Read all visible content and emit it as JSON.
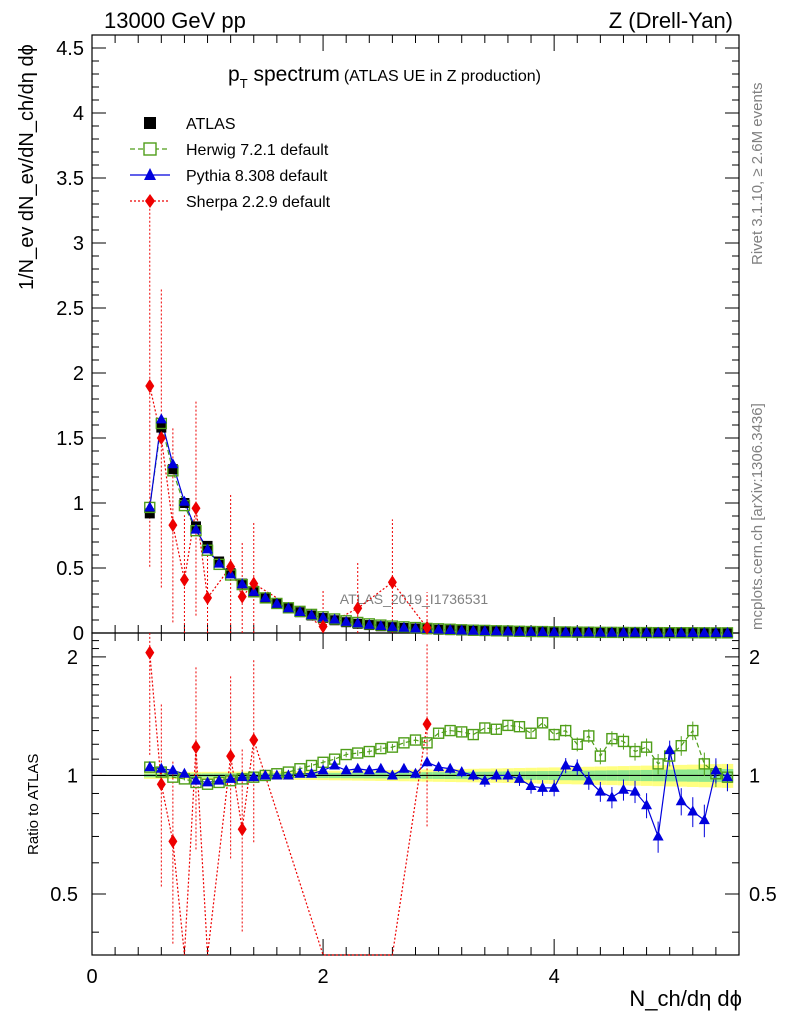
{
  "header": {
    "left": "13000 GeV pp",
    "right": "Z (Drell-Yan)"
  },
  "title": {
    "main": "p",
    "sub": "T",
    "main2": " spectrum",
    "small": "(ATLAS UE in Z production)"
  },
  "watermark": "ATLAS_2019_I1736531",
  "side": {
    "rivet": "Rivet 3.1.10, ≥ 2.6M events",
    "mcplots": "mcplots.cern.ch [arXiv:1306.3436]"
  },
  "axes": {
    "ylabel_top": "1/N_ev dN_ev/dN_ch/dη dϕ",
    "ylabel_bottom": "Ratio to ATLAS",
    "xlabel": "N_ch/dη dϕ"
  },
  "legend": [
    {
      "label": "ATLAS",
      "color": "#000000",
      "marker": "square"
    },
    {
      "label": "Herwig 7.2.1 default",
      "color": "#4f9e19",
      "marker": "open-square",
      "dash": "dashed"
    },
    {
      "label": "Pythia 8.308 default",
      "color": "#0000dd",
      "marker": "triangle",
      "dash": "solid"
    },
    {
      "label": "Sherpa 2.2.9 default",
      "color": "#ee0000",
      "marker": "diamond",
      "dash": "dotted"
    }
  ],
  "chart_data": {
    "type": "scatter",
    "xlim": [
      0,
      5.6
    ],
    "top_ylim": [
      0,
      4.6
    ],
    "ratio_ylim": [
      0.35,
      2.3
    ],
    "top_yticks": [
      "0",
      "0.5",
      "1",
      "1.5",
      "2",
      "2.5",
      "3",
      "3.5",
      "4",
      "4.5"
    ],
    "ratio_yticks": [
      "0.5",
      "1",
      "2"
    ],
    "xticks": [
      "0",
      "2",
      "4"
    ],
    "x": [
      0.5,
      0.6,
      0.7,
      0.8,
      0.9,
      1.0,
      1.1,
      1.2,
      1.3,
      1.4,
      1.5,
      1.6,
      1.7,
      1.8,
      1.9,
      2.0,
      2.1,
      2.2,
      2.3,
      2.4,
      2.5,
      2.6,
      2.7,
      2.8,
      2.9,
      3.0,
      3.1,
      3.2,
      3.3,
      3.4,
      3.5,
      3.6,
      3.7,
      3.8,
      3.9,
      4.0,
      4.1,
      4.2,
      4.3,
      4.4,
      4.5,
      4.6,
      4.7,
      4.8,
      4.9,
      5.0,
      5.1,
      5.2,
      5.3,
      5.4,
      5.5
    ],
    "atlas": [
      0.92,
      1.58,
      1.26,
      1.0,
      0.82,
      0.67,
      0.55,
      0.46,
      0.38,
      0.32,
      0.27,
      0.225,
      0.19,
      0.16,
      0.135,
      0.115,
      0.098,
      0.083,
      0.071,
      0.061,
      0.052,
      0.045,
      0.039,
      0.034,
      0.029,
      0.025,
      0.022,
      0.019,
      0.017,
      0.015,
      0.013,
      0.0115,
      0.01,
      0.009,
      0.008,
      0.007,
      0.0062,
      0.0055,
      0.0049,
      0.0043,
      0.0038,
      0.0034,
      0.003,
      0.0027,
      0.0024,
      0.0021,
      0.0019,
      0.0017,
      0.0015,
      0.0013,
      0.0012
    ],
    "series": [
      {
        "name": "Herwig 7.2.1 default",
        "ratio": [
          1.05,
          1.02,
          0.99,
          0.98,
          0.96,
          0.95,
          0.96,
          0.97,
          0.98,
          0.99,
          1.0,
          1.01,
          1.02,
          1.04,
          1.06,
          1.08,
          1.1,
          1.13,
          1.14,
          1.15,
          1.17,
          1.18,
          1.21,
          1.23,
          1.21,
          1.28,
          1.3,
          1.29,
          1.27,
          1.32,
          1.31,
          1.34,
          1.33,
          1.28,
          1.36,
          1.27,
          1.3,
          1.2,
          1.26,
          1.12,
          1.24,
          1.22,
          1.15,
          1.18,
          1.07,
          1.12,
          1.19,
          1.3,
          1.07,
          1.01,
          0.99
        ]
      },
      {
        "name": "Pythia 8.308 default",
        "ratio": [
          1.05,
          1.04,
          1.03,
          1.01,
          0.97,
          0.96,
          0.97,
          0.98,
          0.99,
          0.99,
          1.0,
          1.0,
          1.0,
          1.01,
          1.01,
          1.03,
          1.06,
          1.03,
          1.04,
          1.03,
          1.04,
          1.0,
          1.04,
          1.01,
          1.08,
          1.05,
          1.04,
          1.02,
          1.0,
          0.97,
          1.0,
          1.0,
          0.98,
          0.94,
          0.93,
          0.93,
          1.06,
          1.05,
          0.97,
          0.91,
          0.88,
          0.92,
          0.91,
          0.84,
          0.7,
          1.16,
          0.86,
          0.81,
          0.77,
          1.03,
          0.99
        ]
      },
      {
        "name": "Sherpa 2.2.9 default",
        "x": [
          0.5,
          0.6,
          0.7,
          0.8,
          0.9,
          1.0,
          1.2,
          1.3,
          1.4,
          2.0,
          2.3,
          2.6,
          2.9
        ],
        "values": [
          1.9,
          1.5,
          0.83,
          0.41,
          0.96,
          0.27,
          0.51,
          0.28,
          0.38,
          0.05,
          0.19,
          0.39,
          0.04
        ],
        "ratio": [
          2.05,
          0.95,
          0.68,
          0.2,
          1.18,
          0.2,
          1.12,
          0.73,
          1.23,
          0.2,
          0.2,
          0.2,
          1.35
        ]
      }
    ]
  }
}
